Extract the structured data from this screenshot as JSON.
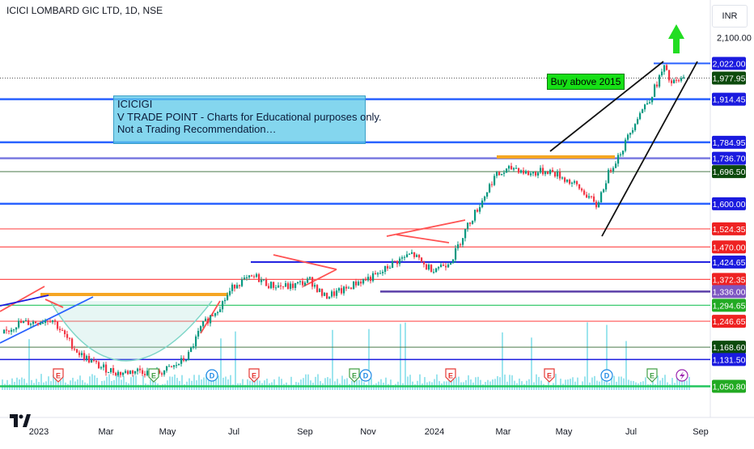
{
  "header": {
    "title": "ICICI LOMBARD GIC LTD, 1D, NSE",
    "currency": "INR"
  },
  "annotations": {
    "note_lines": [
      "ICICIGI",
      "V TRADE POINT - Charts for Educational purposes only.",
      "Not a Trading Recommendation…"
    ],
    "buy_label": "Buy above 2015"
  },
  "colors": {
    "candle_up": "#089981",
    "candle_down": "#f23645",
    "line_blue": "#2962ff",
    "line_red": "#ff5252",
    "line_green": "#22c55e",
    "line_orange": "#f5a623",
    "volume": "#26c6da",
    "arrow": "#22dd22"
  },
  "chart_data": {
    "type": "candlestick",
    "x_ticks": [
      "2023",
      "Mar",
      "May",
      "Jul",
      "Sep",
      "Nov",
      "2024",
      "Mar",
      "May",
      "Jul",
      "Sep"
    ],
    "ylim": [
      1040,
      2130
    ],
    "y_ticks": [
      2100.0
    ],
    "price_levels": [
      {
        "value": 2022.0,
        "label": "2,022.00",
        "bg": "#1a1adf"
      },
      {
        "value": 1977.95,
        "label": "1,977.95",
        "bg": "#0c4a0c"
      },
      {
        "value": 1914.45,
        "label": "1,914.45",
        "bg": "#1a1adf"
      },
      {
        "value": 1784.95,
        "label": "1,784.95",
        "bg": "#1a1adf"
      },
      {
        "value": 1736.7,
        "label": "1,736.70",
        "bg": "#1a1adf"
      },
      {
        "value": 1696.5,
        "label": "1,696.50",
        "bg": "#0c4a0c"
      },
      {
        "value": 1600.0,
        "label": "1,600.00",
        "bg": "#1a1adf"
      },
      {
        "value": 1524.35,
        "label": "1,524.35",
        "bg": "#ee2222"
      },
      {
        "value": 1470.0,
        "label": "1,470.00",
        "bg": "#ee2222"
      },
      {
        "value": 1424.65,
        "label": "1,424.65",
        "bg": "#1a1adf"
      },
      {
        "value": 1372.35,
        "label": "1,372.35",
        "bg": "#ee2222"
      },
      {
        "value": 1336.0,
        "label": "1,336.00",
        "bg": "#7e57c2"
      },
      {
        "value": 1294.65,
        "label": "1,294.65",
        "bg": "#22aa22"
      },
      {
        "value": 1246.65,
        "label": "1,246.65",
        "bg": "#ee2222"
      },
      {
        "value": 1168.6,
        "label": "1,168.60",
        "bg": "#0c4a0c"
      },
      {
        "value": 1131.5,
        "label": "1,131.50",
        "bg": "#1a1adf"
      },
      {
        "value": 1050.8,
        "label": "1,050.80",
        "bg": "#22aa22"
      }
    ],
    "price_path": [
      [
        0,
        1210
      ],
      [
        0.02,
        1240
      ],
      [
        0.05,
        1245
      ],
      [
        0.07,
        1255
      ],
      [
        0.09,
        1200
      ],
      [
        0.11,
        1150
      ],
      [
        0.14,
        1110
      ],
      [
        0.17,
        1090
      ],
      [
        0.2,
        1100
      ],
      [
        0.22,
        1085
      ],
      [
        0.25,
        1110
      ],
      [
        0.27,
        1140
      ],
      [
        0.29,
        1230
      ],
      [
        0.32,
        1300
      ],
      [
        0.34,
        1360
      ],
      [
        0.37,
        1380
      ],
      [
        0.39,
        1355
      ],
      [
        0.42,
        1350
      ],
      [
        0.45,
        1370
      ],
      [
        0.47,
        1320
      ],
      [
        0.5,
        1340
      ],
      [
        0.52,
        1365
      ],
      [
        0.55,
        1385
      ],
      [
        0.57,
        1420
      ],
      [
        0.6,
        1450
      ],
      [
        0.62,
        1410
      ],
      [
        0.63,
        1405
      ],
      [
        0.65,
        1420
      ],
      [
        0.66,
        1440
      ],
      [
        0.68,
        1530
      ],
      [
        0.7,
        1600
      ],
      [
        0.72,
        1680
      ],
      [
        0.75,
        1710
      ],
      [
        0.77,
        1690
      ],
      [
        0.8,
        1700
      ],
      [
        0.82,
        1680
      ],
      [
        0.84,
        1655
      ],
      [
        0.86,
        1620
      ],
      [
        0.87,
        1590
      ],
      [
        0.89,
        1700
      ],
      [
        0.91,
        1770
      ],
      [
        0.93,
        1860
      ],
      [
        0.95,
        1920
      ],
      [
        0.97,
        2010
      ],
      [
        0.98,
        1960
      ],
      [
        1.0,
        1975
      ]
    ]
  }
}
